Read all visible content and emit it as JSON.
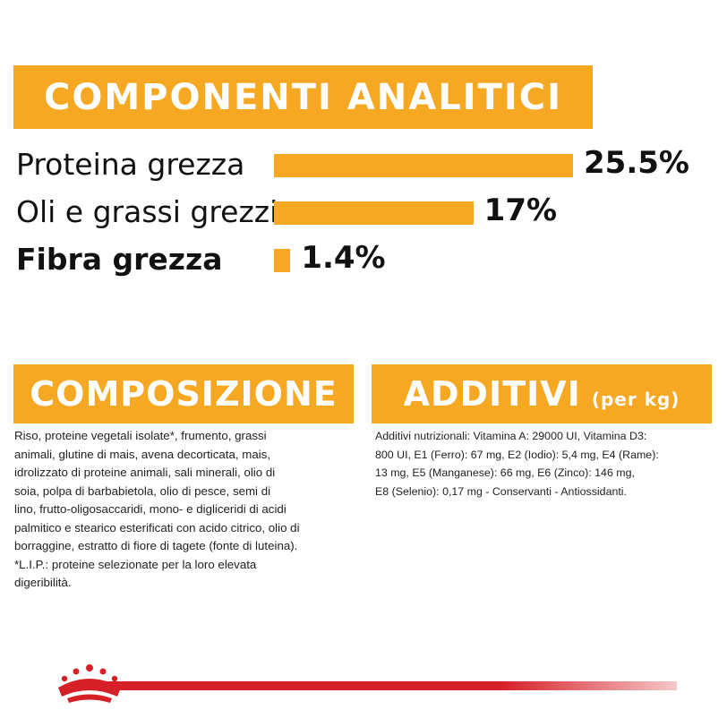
{
  "analitici": {
    "title": "COMPONENTI ANALITICI"
  },
  "chart_data": {
    "type": "bar",
    "orientation": "horizontal",
    "categories": [
      "Proteina grezza",
      "Oli e grassi grezzi",
      "Fibra grezza"
    ],
    "values": [
      25.5,
      17,
      1.4
    ],
    "value_labels": [
      "25.5%",
      "17%",
      "1.4%"
    ],
    "title": "",
    "xlabel": "",
    "ylabel": "",
    "xlim": [
      0,
      25.5
    ],
    "grid": false,
    "bar_color": "#F7A823"
  },
  "composizione": {
    "title": "COMPOSIZIONE",
    "lines": [
      "Riso, proteine vegetali isolate*, frumento, grassi",
      "animali, glutine di mais, avena decorticata, mais,",
      "idrolizzato di proteine animali, sali minerali, olio di",
      "soia, polpa di barbabietola, olio di pesce, semi di",
      "lino, frutto-oligosaccaridi, mono- e digliceridi di acidi",
      "palmitico e stearico esterificati con acido citrico, olio di",
      "borraggine, estratto di fiore di tagete (fonte di luteina).",
      "*L.I.P.: proteine selezionate per la loro elevata",
      "digeribilità."
    ]
  },
  "additivi": {
    "title": "ADDITIVI",
    "subtitle": "(per kg)",
    "lines": [
      "Additivi nutrizionali: Vitamina A: 29000 UI, Vitamina D3:",
      "800 UI, E1 (Ferro): 67 mg, E2 (Iodio): 5,4 mg, E4 (Rame):",
      "13 mg, E5 (Manganese): 66 mg, E6 (Zinco): 146 mg,",
      "E8 (Selenio): 0,17 mg - Conservanti - Antiossidanti."
    ]
  },
  "brand": {
    "logo_icon": "crown-icon",
    "accent": "#F7A823",
    "footer_color": "#D62027"
  }
}
